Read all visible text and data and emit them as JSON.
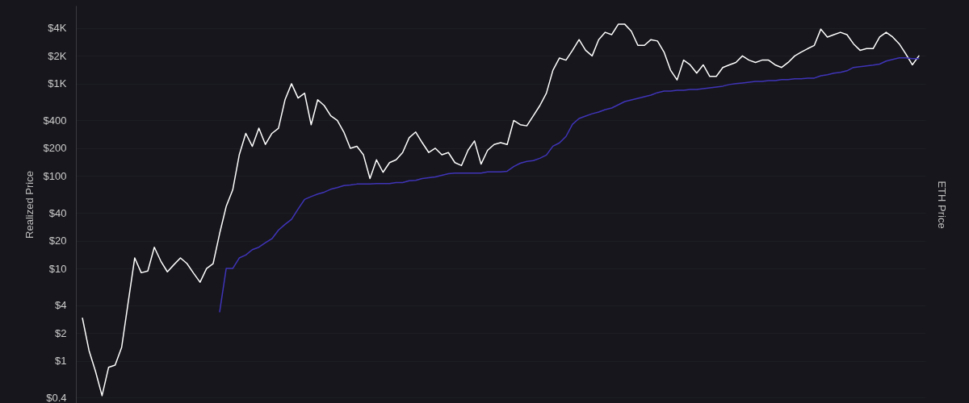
{
  "chart_data": {
    "type": "line",
    "ylabel": "Realized Price",
    "y2label": "ETH Price",
    "categories": [
      null,
      null,
      null,
      null,
      null,
      null,
      null,
      null,
      null,
      null,
      null,
      null,
      null,
      null,
      null,
      null,
      null,
      null,
      null,
      null,
      null,
      null,
      null,
      null,
      null,
      null,
      null,
      null,
      null,
      null,
      null,
      null,
      null,
      null,
      null,
      null,
      null,
      null,
      null,
      null,
      null,
      null,
      null,
      null,
      null,
      null,
      null,
      null,
      null,
      null,
      null,
      null,
      null,
      null,
      null,
      null,
      null,
      null,
      null,
      null,
      null,
      null,
      null,
      null,
      null,
      null,
      null,
      null,
      null,
      null,
      null,
      null,
      null,
      null,
      null,
      null,
      null,
      null,
      null,
      null,
      null,
      null,
      null,
      null,
      null,
      null,
      null,
      null,
      null,
      null,
      null,
      null,
      null,
      null,
      null,
      null,
      null,
      null,
      null,
      null,
      null,
      null,
      null,
      null,
      null,
      null,
      null,
      null,
      null,
      null,
      null,
      null,
      null,
      null,
      null,
      null,
      null,
      null,
      null,
      null,
      null,
      null,
      null,
      null,
      null,
      null,
      null,
      null,
      null
    ],
    "series": [
      {
        "color": "#ffffff",
        "values": [
          2.9,
          1.3,
          0.77,
          0.42,
          0.85,
          0.9,
          1.4,
          4.3,
          13,
          9,
          9.4,
          17,
          12,
          9.2,
          11,
          13,
          11.3,
          8.9,
          7.1,
          10,
          11.3,
          24,
          47,
          71,
          170,
          290,
          210,
          330,
          220,
          290,
          330,
          670,
          1000,
          700,
          790,
          360,
          670,
          580,
          450,
          400,
          300,
          200,
          210,
          170,
          94,
          150,
          110,
          140,
          150,
          180,
          260,
          300,
          230,
          180,
          200,
          170,
          180,
          140,
          130,
          190,
          240,
          135,
          190,
          220,
          230,
          220,
          400,
          360,
          350,
          450,
          580,
          790,
          1400,
          1900,
          1800,
          2300,
          3000,
          2300,
          2000,
          3000,
          3600,
          3400,
          4400,
          4400,
          3700,
          2600,
          2600,
          3000,
          2900,
          2200,
          1400,
          1100,
          1800,
          1600,
          1300,
          1600,
          1200,
          1200,
          1500,
          1600,
          1700,
          2000,
          1800,
          1700,
          1800,
          1800,
          1600,
          1500,
          1700,
          2000,
          2200,
          2400,
          2600,
          3900,
          3200,
          3400,
          3600,
          3400,
          2700,
          2300,
          2400,
          2400,
          3200,
          3600,
          3200,
          2700,
          2100,
          1600,
          2000
        ]
      },
      {
        "color": "#4034b8",
        "values": [
          null,
          null,
          null,
          null,
          null,
          null,
          null,
          null,
          null,
          null,
          null,
          null,
          null,
          null,
          null,
          null,
          null,
          null,
          null,
          null,
          null,
          3.4,
          10,
          10,
          13,
          14,
          16,
          17,
          19,
          21,
          26,
          30,
          34,
          44,
          56,
          60,
          64,
          67,
          72,
          75,
          79,
          80,
          82,
          82,
          82,
          83,
          83,
          83,
          85,
          85,
          89,
          90,
          94,
          96,
          98,
          102,
          106,
          108,
          108,
          108,
          108,
          108,
          111,
          111,
          111,
          113,
          127,
          138,
          144,
          147,
          156,
          169,
          211,
          229,
          269,
          364,
          420,
          446,
          473,
          493,
          524,
          546,
          592,
          641,
          668,
          695,
          724,
          754,
          801,
          834,
          834,
          851,
          851,
          868,
          868,
          886,
          904,
          922,
          941,
          980,
          1000,
          1020,
          1040,
          1060,
          1060,
          1080,
          1080,
          1110,
          1110,
          1130,
          1130,
          1150,
          1150,
          1220,
          1250,
          1300,
          1330,
          1380,
          1500,
          1530,
          1560,
          1590,
          1630,
          1760,
          1830,
          1910,
          1910,
          1870,
          1870
        ]
      }
    ],
    "log": true,
    "ylim": [
      0.35,
      7000
    ],
    "yticks": [
      {
        "value": 0.4,
        "label": "$0.4"
      },
      {
        "value": 1,
        "label": "$1"
      },
      {
        "value": 2,
        "label": "$2"
      },
      {
        "value": 4,
        "label": "$4"
      },
      {
        "value": 10,
        "label": "$10"
      },
      {
        "value": 20,
        "label": "$20"
      },
      {
        "value": 40,
        "label": "$40"
      },
      {
        "value": 100,
        "label": "$100"
      },
      {
        "value": 200,
        "label": "$200"
      },
      {
        "value": 400,
        "label": "$400"
      },
      {
        "value": 1000,
        "label": "$1K"
      },
      {
        "value": 2000,
        "label": "$2K"
      },
      {
        "value": 4000,
        "label": "$4K"
      }
    ],
    "grid": "y",
    "tick_labels": "y"
  }
}
